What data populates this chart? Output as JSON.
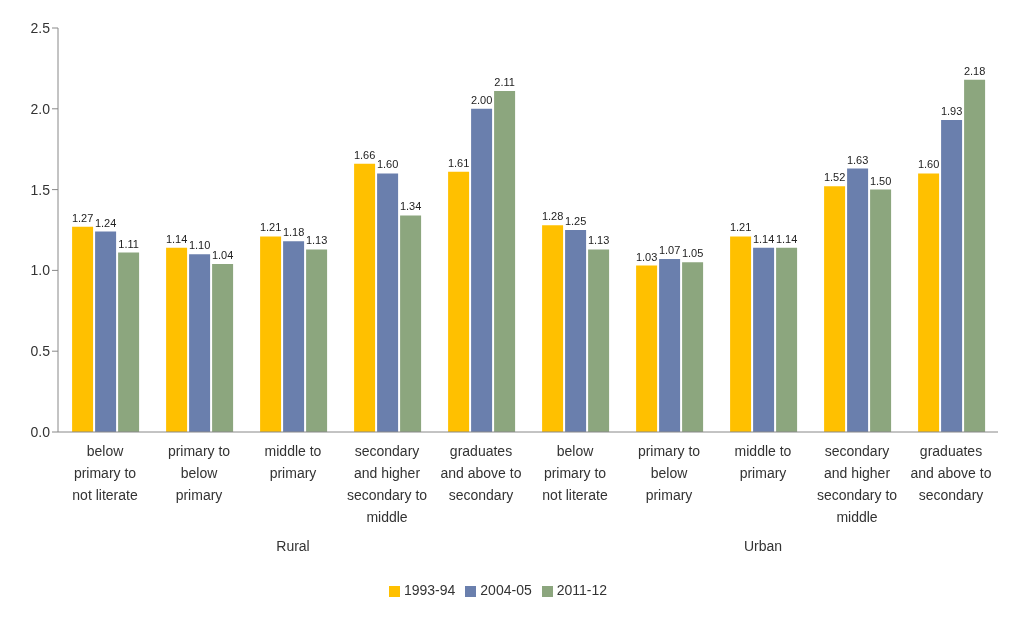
{
  "chart_data": {
    "type": "bar",
    "categories": [
      "below primary to not literate",
      "primary to below primary",
      "middle to primary",
      "secondary and higher secondary to middle",
      "graduates and above to secondary",
      "below primary to not literate",
      "primary to below primary",
      "middle to primary",
      "secondary and higher secondary to middle",
      "graduates and above to secondary"
    ],
    "series": [
      {
        "name": "1993-94",
        "color": "#ffc000",
        "values": [
          1.27,
          1.14,
          1.21,
          1.66,
          1.61,
          1.28,
          1.03,
          1.21,
          1.52,
          1.6
        ],
        "value_labels": [
          "1.27",
          "1.14",
          "1.21",
          "1.66",
          "1.61",
          "1.28",
          "1.03",
          "1.21",
          "1.52",
          "1.60"
        ]
      },
      {
        "name": "2004-05",
        "color": "#6a7fad",
        "values": [
          1.24,
          1.1,
          1.18,
          1.6,
          2.0,
          1.25,
          1.07,
          1.14,
          1.63,
          1.93
        ],
        "value_labels": [
          "1.24",
          "1.10",
          "1.18",
          "1.60",
          "2.00",
          "1.25",
          "1.07",
          "1.14",
          "1.63",
          "1.93"
        ]
      },
      {
        "name": "2011-12",
        "color": "#8ca67e",
        "values": [
          1.11,
          1.04,
          1.13,
          1.34,
          2.11,
          1.13,
          1.05,
          1.14,
          1.5,
          2.18
        ],
        "value_labels": [
          "1.11",
          "1.04",
          "1.13",
          "1.34",
          "2.11",
          "1.13",
          "1.05",
          "1.14",
          "1.50",
          "2.18"
        ]
      }
    ],
    "ylim": [
      0,
      2.5
    ],
    "yticks": [
      {
        "value": 0,
        "label": "0.0"
      },
      {
        "value": 0.5,
        "label": "0.5"
      },
      {
        "value": 1,
        "label": "1.0"
      },
      {
        "value": 1.5,
        "label": "1.5"
      },
      {
        "value": 2,
        "label": "2.0"
      },
      {
        "value": 2.5,
        "label": "2.5"
      }
    ],
    "legend": "bottom",
    "annotations": [
      "Rural",
      "Urban"
    ]
  }
}
